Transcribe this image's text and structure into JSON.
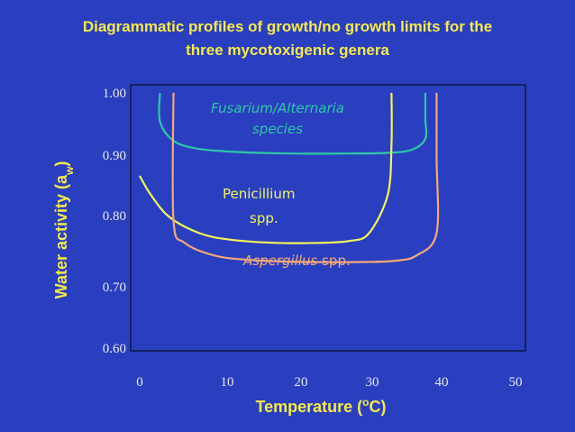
{
  "title_line1": "Diagrammatic profiles of growth/no growth limits for the",
  "title_line2": "three mycotoxigenic genera",
  "chart_data": {
    "type": "line",
    "title": "Diagrammatic profiles of growth/no growth limits for the three mycotoxigenic genera",
    "xlabel": "Temperature (oC)",
    "ylabel": "Water activity (aw)",
    "xlim": [
      0,
      52
    ],
    "ylim": [
      0.6,
      1.0
    ],
    "x_ticks": [
      "0",
      "10",
      "20",
      "30",
      "40",
      "50"
    ],
    "y_ticks": [
      "0.60",
      "0.70",
      "0.80",
      "0.90",
      "1.00"
    ],
    "grid": false,
    "series": [
      {
        "name": "Fusarium/Alternaria species",
        "label_line1": "Fusarium/Alternaria",
        "label_line2": "species",
        "color": "#2fc7a8",
        "italic": true,
        "x": [
          2.7,
          2.7,
          4.5,
          7.5,
          12,
          20,
          28,
          33,
          36.2,
          38,
          38,
          38
        ],
        "y": [
          1.0,
          0.955,
          0.925,
          0.913,
          0.908,
          0.905,
          0.905,
          0.906,
          0.911,
          0.928,
          0.96,
          1.0
        ]
      },
      {
        "name": "Penicillium spp.",
        "label_line1": "Penicillium",
        "label_line2": "spp.",
        "color": "#f4f45a",
        "italic": false,
        "x": [
          0,
          1.5,
          4,
          8,
          12,
          18,
          24,
          28,
          30.5,
          33,
          33.5,
          33.5
        ],
        "y": [
          0.87,
          0.84,
          0.805,
          0.78,
          0.77,
          0.765,
          0.765,
          0.768,
          0.78,
          0.84,
          0.92,
          1.0
        ]
      },
      {
        "name": "Aspergillus spp.",
        "label_line1": "Aspergillus",
        "label_line2": "spp.",
        "color": "#f4a87a",
        "italic": true,
        "x": [
          4.5,
          4.5,
          6,
          10,
          15,
          22,
          30,
          34,
          36.8,
          39.5,
          39.5,
          39.5
        ],
        "y": [
          1.0,
          0.8,
          0.765,
          0.745,
          0.738,
          0.735,
          0.735,
          0.737,
          0.745,
          0.78,
          0.9,
          1.0
        ]
      }
    ]
  }
}
